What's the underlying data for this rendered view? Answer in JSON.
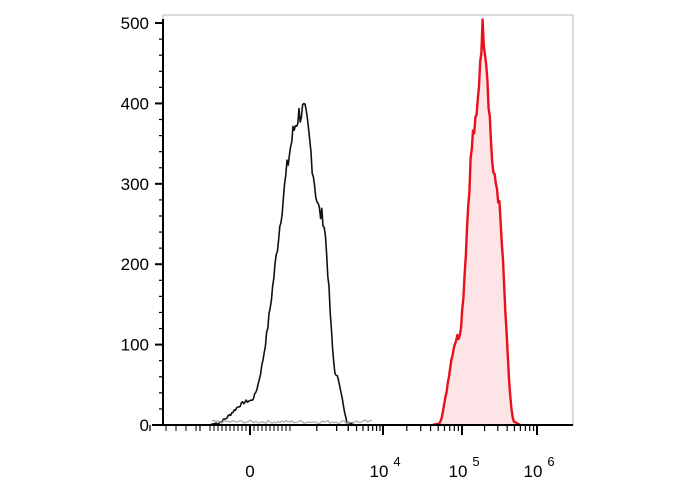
{
  "chart_data": {
    "type": "area",
    "title": "",
    "xlabel": "",
    "ylabel": "",
    "x_scale": "biexponential",
    "ylim": [
      0,
      510
    ],
    "y_ticks": [
      0,
      100,
      200,
      300,
      400,
      500
    ],
    "y_tick_labels": [
      "0",
      "100",
      "200",
      "300",
      "400",
      "500"
    ],
    "x_ticks": [
      {
        "value": "0",
        "base": "0",
        "exp": ""
      },
      {
        "value": "10^4",
        "base": "10",
        "exp": "4"
      },
      {
        "value": "10^5",
        "base": "10",
        "exp": "5"
      },
      {
        "value": "10^6",
        "base": "10",
        "exp": "6"
      }
    ],
    "grid": false,
    "legend": "none",
    "series": [
      {
        "color": "#111111",
        "fill": "none",
        "x": [
          "-700",
          "0",
          "600",
          "1200",
          "2000",
          "3000"
        ],
        "values": [
          2,
          30,
          390,
          260,
          60,
          2
        ]
      },
      {
        "color": "#e8111b",
        "fill": "#fde4e6",
        "x": [
          "5e4",
          "9e4",
          "1.5e5",
          "1.9e5",
          "2.8e5",
          "5e5"
        ],
        "values": [
          3,
          110,
          370,
          490,
          300,
          2
        ]
      }
    ]
  }
}
